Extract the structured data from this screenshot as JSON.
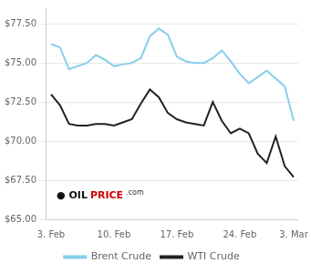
{
  "chart_data": {
    "type": "line",
    "x": [
      0,
      1,
      2,
      3,
      4,
      5,
      6,
      7,
      8,
      9,
      10,
      11,
      12,
      13,
      14,
      15,
      16,
      17,
      18,
      19,
      20,
      21,
      22,
      23,
      24,
      25,
      26,
      27
    ],
    "series": [
      {
        "name": "Brent Crude",
        "color": "#87CEEB",
        "values": [
          76.2,
          76.0,
          74.6,
          74.8,
          75.0,
          75.5,
          75.2,
          74.8,
          74.9,
          75.0,
          75.3,
          76.7,
          77.2,
          76.8,
          75.4,
          75.1,
          75.0,
          75.0,
          75.3,
          75.8,
          75.1,
          74.3,
          73.7,
          74.1,
          74.5,
          74.0,
          73.5,
          71.3
        ]
      },
      {
        "name": "WTI Crude",
        "color": "#222222",
        "values": [
          73.0,
          72.3,
          71.1,
          71.0,
          71.0,
          71.1,
          71.1,
          71.0,
          71.2,
          71.4,
          72.4,
          73.3,
          72.8,
          71.8,
          71.4,
          71.2,
          71.1,
          71.0,
          72.5,
          71.3,
          70.5,
          70.8,
          70.5,
          69.2,
          68.6,
          70.3,
          68.4,
          67.7
        ]
      }
    ],
    "xlim": [
      -0.5,
      27.5
    ],
    "xticks": [
      {
        "value": 0,
        "label": "3. Feb"
      },
      {
        "value": 7,
        "label": "10. Feb"
      },
      {
        "value": 14,
        "label": "17. Feb"
      },
      {
        "value": 21,
        "label": "24. Feb"
      },
      {
        "value": 27,
        "label": "3. Mar"
      }
    ],
    "ylim": [
      65.0,
      78.5
    ],
    "yticks": [
      {
        "value": 65.0,
        "label": "$65.00"
      },
      {
        "value": 67.5,
        "label": "$67.50"
      },
      {
        "value": 70.0,
        "label": "$70.00"
      },
      {
        "value": 72.5,
        "label": "$72.50"
      },
      {
        "value": 75.0,
        "label": "$75.00"
      },
      {
        "value": 77.5,
        "label": "$77.50"
      }
    ],
    "grid": "y",
    "legend": "bottom",
    "annotations": [
      {
        "text": "● OIL",
        "color": "#111111"
      },
      {
        "text": "PRICE",
        "color": "#cc0000"
      },
      {
        "text": ".com",
        "color": "#333333"
      }
    ]
  }
}
